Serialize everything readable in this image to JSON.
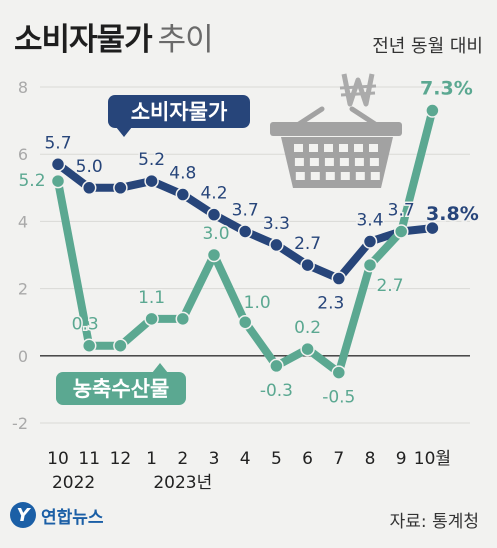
{
  "header": {
    "title_main": "소비자물가",
    "title_sub": "추이",
    "yoy_label": "전년 동월 대비"
  },
  "footer": {
    "source": "자료: 통계청",
    "logo_text": "연합뉴스"
  },
  "colors": {
    "cpi": "#27457a",
    "agri": "#5ba891",
    "grid": "#d9d9d6",
    "axis_tick": "#a9a9a9",
    "zero_line": "#333333"
  },
  "icons": [
    "shopping-basket-icon",
    "won-sign-icon"
  ],
  "chart_data": {
    "type": "line",
    "categories": [
      "10",
      "11",
      "12",
      "1",
      "2",
      "3",
      "4",
      "5",
      "6",
      "7",
      "8",
      "9",
      "10월"
    ],
    "year_labels": [
      {
        "text": "2022",
        "category_index": 0.5
      },
      {
        "text": "2023년",
        "category_index": 4
      }
    ],
    "ylim": [
      -2,
      8
    ],
    "yticks": [
      -2,
      0,
      2,
      4,
      6,
      8
    ],
    "grid": true,
    "series": [
      {
        "name": "소비자물가",
        "key": "cpi",
        "values": [
          5.7,
          5.0,
          5.0,
          5.2,
          4.8,
          4.2,
          3.7,
          3.3,
          2.7,
          2.3,
          3.4,
          3.7,
          3.8
        ],
        "labels": [
          "5.7",
          "5.0",
          "",
          "5.2",
          "4.8",
          "4.2",
          "3.7",
          "3.3",
          "2.7",
          "2.3",
          "3.4",
          "3.7",
          "3.8%"
        ]
      },
      {
        "name": "농축수산물",
        "key": "agri",
        "values": [
          5.2,
          0.3,
          0.3,
          1.1,
          1.1,
          3.0,
          1.0,
          -0.3,
          0.2,
          -0.5,
          2.7,
          3.7,
          7.3
        ],
        "labels": [
          "5.2",
          "0.3",
          "",
          "1.1",
          "",
          "3.0",
          "1.0",
          "-0.3",
          "0.2",
          "-0.5",
          "2.7",
          "",
          "7.3%"
        ]
      }
    ]
  }
}
